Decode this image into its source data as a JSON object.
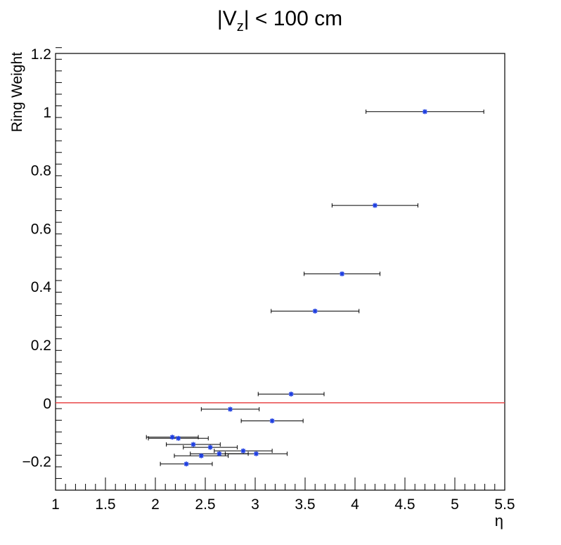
{
  "chart_data": {
    "type": "scatter",
    "title": {
      "prefix": "|V",
      "sub": "z",
      "suffix": "| < 100 cm"
    },
    "xlabel": "η",
    "ylabel": "Ring Weight",
    "xlim": [
      1,
      5.5
    ],
    "ylim": [
      -0.3,
      1.2
    ],
    "x_ticks": [
      1,
      1.5,
      2,
      2.5,
      3,
      3.5,
      4,
      4.5,
      5,
      5.5
    ],
    "x_tick_labels": [
      "1",
      "1.5",
      "2",
      "2.5",
      "3",
      "3.5",
      "4",
      "4.5",
      "5",
      "5.5"
    ],
    "y_ticks": [
      -0.2,
      0,
      0.2,
      0.4,
      0.6,
      0.8,
      1,
      1.2
    ],
    "y_tick_labels": [
      "−0.2",
      "0",
      "0.2",
      "0.4",
      "0.6",
      "0.8",
      "1",
      "1.2"
    ],
    "reference_line": {
      "y": 0,
      "color": "#e8484a"
    },
    "marker_color": "#1f3fe0",
    "errorbar_color": "#000000",
    "grid": false,
    "series": [
      {
        "points": [
          {
            "x": 4.7,
            "y": 1.0,
            "xerr": 0.59
          },
          {
            "x": 4.2,
            "y": 0.678,
            "xerr": 0.43
          },
          {
            "x": 3.87,
            "y": 0.443,
            "xerr": 0.38
          },
          {
            "x": 3.6,
            "y": 0.315,
            "xerr": 0.44
          },
          {
            "x": 3.36,
            "y": 0.03,
            "xerr": 0.33
          },
          {
            "x": 2.75,
            "y": -0.022,
            "xerr": 0.29
          },
          {
            "x": 3.17,
            "y": -0.062,
            "xerr": 0.31
          },
          {
            "x": 2.17,
            "y": -0.118,
            "xerr": 0.26
          },
          {
            "x": 2.23,
            "y": -0.122,
            "xerr": 0.3
          },
          {
            "x": 2.38,
            "y": -0.143,
            "xerr": 0.27
          },
          {
            "x": 2.55,
            "y": -0.153,
            "xerr": 0.27
          },
          {
            "x": 2.88,
            "y": -0.165,
            "xerr": 0.29
          },
          {
            "x": 2.64,
            "y": -0.175,
            "xerr": 0.29
          },
          {
            "x": 3.01,
            "y": -0.175,
            "xerr": 0.31
          },
          {
            "x": 2.46,
            "y": -0.182,
            "xerr": 0.27
          },
          {
            "x": 2.31,
            "y": -0.21,
            "xerr": 0.26
          }
        ]
      }
    ]
  }
}
